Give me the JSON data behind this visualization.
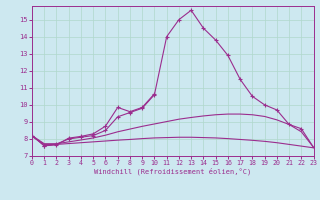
{
  "x": [
    0,
    1,
    2,
    3,
    4,
    5,
    6,
    7,
    8,
    9,
    10,
    11,
    12,
    13,
    14,
    15,
    16,
    17,
    18,
    19,
    20,
    21,
    22,
    23
  ],
  "line_main": [
    8.2,
    7.6,
    7.7,
    8.0,
    8.1,
    8.2,
    8.5,
    9.3,
    9.55,
    9.8,
    10.6,
    14.0,
    15.0,
    15.55,
    14.5,
    13.8,
    12.9,
    11.5,
    10.5,
    10.0,
    9.7,
    8.85,
    8.6,
    7.5
  ],
  "line_short": [
    8.2,
    7.6,
    7.65,
    8.05,
    8.15,
    8.3,
    8.75,
    9.85,
    9.6,
    9.85,
    10.65
  ],
  "line_short_x": [
    0,
    1,
    2,
    3,
    4,
    5,
    6,
    7,
    8,
    9,
    10
  ],
  "line_smooth1": [
    8.2,
    7.72,
    7.72,
    7.83,
    7.94,
    8.06,
    8.22,
    8.42,
    8.58,
    8.74,
    8.88,
    9.02,
    9.16,
    9.26,
    9.35,
    9.42,
    9.46,
    9.46,
    9.42,
    9.32,
    9.12,
    8.85,
    8.42,
    7.5
  ],
  "line_smooth2": [
    8.15,
    7.68,
    7.68,
    7.73,
    7.78,
    7.83,
    7.88,
    7.93,
    7.97,
    8.02,
    8.06,
    8.08,
    8.1,
    8.1,
    8.08,
    8.06,
    8.02,
    7.97,
    7.92,
    7.86,
    7.78,
    7.68,
    7.58,
    7.48
  ],
  "line_color": "#9b2d8e",
  "bg_color": "#cde8f0",
  "grid_color": "#b0d8cc",
  "xlabel": "Windchill (Refroidissement éolien,°C)",
  "ylim": [
    7.0,
    15.8
  ],
  "xlim": [
    0,
    23
  ],
  "yticks": [
    7,
    8,
    9,
    10,
    11,
    12,
    13,
    14,
    15
  ],
  "xticks": [
    0,
    1,
    2,
    3,
    4,
    5,
    6,
    7,
    8,
    9,
    10,
    11,
    12,
    13,
    14,
    15,
    16,
    17,
    18,
    19,
    20,
    21,
    22,
    23
  ]
}
